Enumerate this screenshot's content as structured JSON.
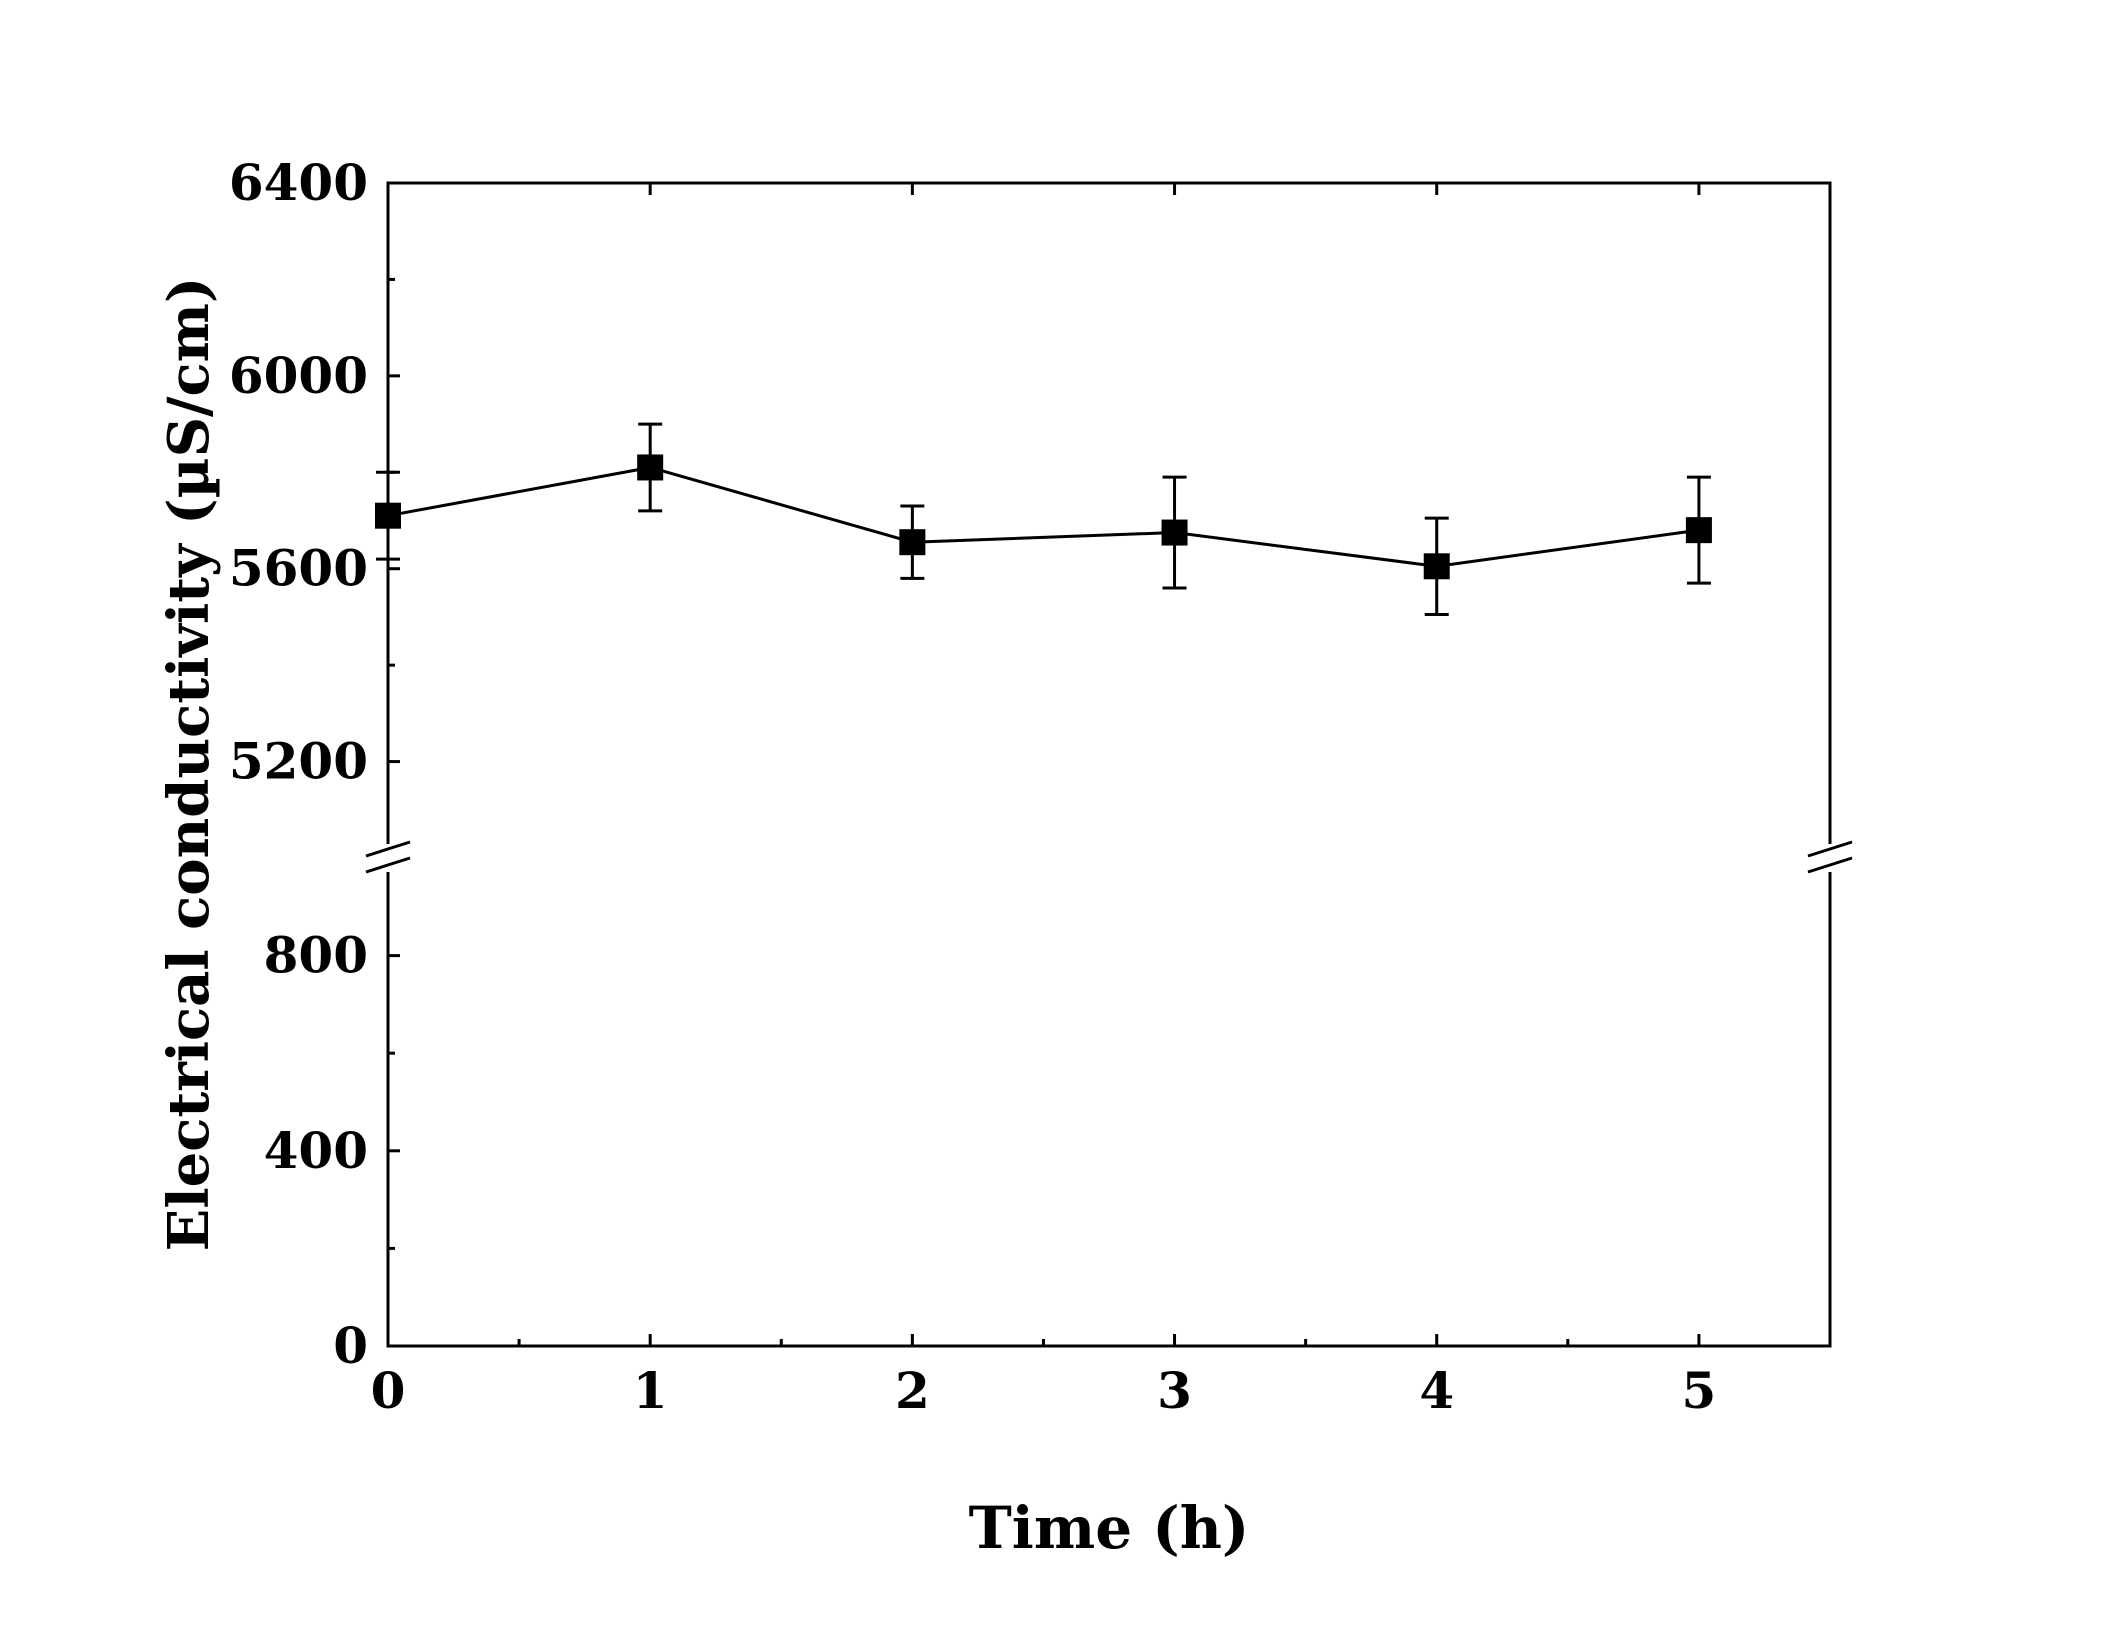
{
  "chart_data": {
    "type": "line",
    "title": "",
    "xlabel": "Time (h)",
    "ylabel": "Electrical conductivity (µS/cm)",
    "xlim": [
      0,
      5.5
    ],
    "x_ticks": [
      "0",
      "1",
      "2",
      "3",
      "4",
      "5"
    ],
    "y_axis_break": true,
    "y_segments": [
      {
        "name": "lower",
        "range": [
          0,
          1000
        ],
        "ticks": [
          "0",
          "400",
          "800"
        ]
      },
      {
        "name": "upper",
        "range": [
          5000,
          6400
        ],
        "ticks": [
          "5200",
          "5600",
          "6000",
          "6400"
        ]
      }
    ],
    "grid": false,
    "legend": "none",
    "series": [
      {
        "marker": "square",
        "color": "#000000",
        "x": [
          0,
          1,
          2,
          3,
          4,
          5
        ],
        "y": [
          5710,
          5810,
          5655,
          5675,
          5605,
          5680
        ],
        "error": [
          [
            90,
            90
          ],
          [
            90,
            90
          ],
          [
            75,
            75
          ],
          [
            115,
            115
          ],
          [
            100,
            100
          ],
          [
            110,
            110
          ]
        ]
      }
    ]
  }
}
